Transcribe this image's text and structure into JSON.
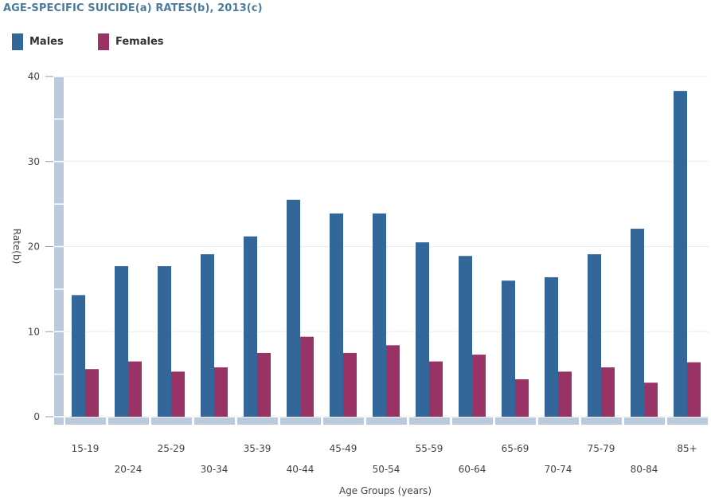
{
  "chart_data": {
    "type": "bar",
    "title": "AGE-SPECIFIC SUICIDE(a) RATES(b), 2013(c)",
    "xlabel": "Age Groups (years)",
    "ylabel": "Rate(b)",
    "ylim": [
      0,
      40
    ],
    "yticks": [
      "0",
      "10",
      "20",
      "30",
      "40"
    ],
    "grid": true,
    "legend_position": "top-left",
    "categories": [
      "15-19",
      "20-24",
      "25-29",
      "30-34",
      "35-39",
      "40-44",
      "45-49",
      "50-54",
      "55-59",
      "60-64",
      "65-69",
      "70-74",
      "75-79",
      "80-84",
      "85+"
    ],
    "series": [
      {
        "name": "Males",
        "color": "#336699",
        "values": [
          14.3,
          17.7,
          17.7,
          19.1,
          21.2,
          25.5,
          23.9,
          23.9,
          20.5,
          18.9,
          16.0,
          16.4,
          19.1,
          22.1,
          38.3
        ]
      },
      {
        "name": "Females",
        "color": "#993366",
        "values": [
          5.6,
          6.5,
          5.3,
          5.8,
          7.5,
          9.4,
          7.5,
          8.4,
          6.5,
          7.3,
          4.4,
          5.3,
          5.8,
          4.0,
          6.4
        ]
      }
    ]
  }
}
